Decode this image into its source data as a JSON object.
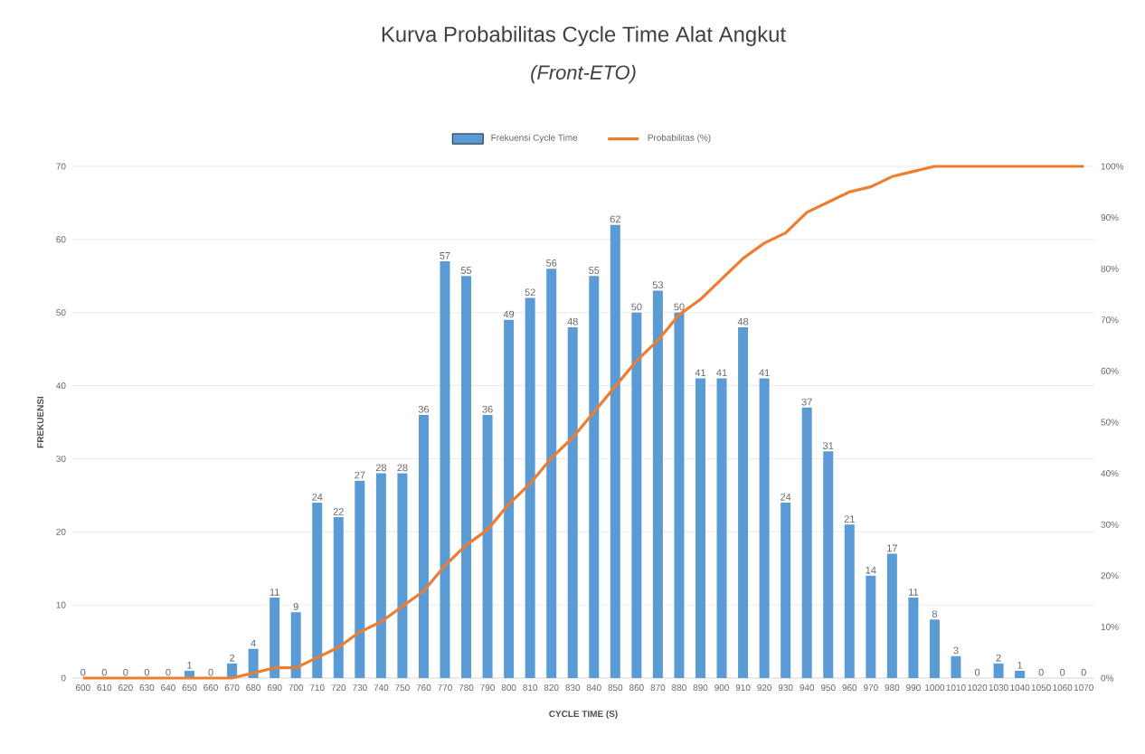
{
  "chart_data": {
    "type": "bar",
    "title": "Kurva Probabilitas Cycle Time Alat Angkut",
    "subtitle": "(Front-ETO)",
    "xlabel": "CYCLE TIME (S)",
    "ylabel": "FREKUENSI",
    "categories": [
      "600",
      "610",
      "620",
      "630",
      "640",
      "650",
      "660",
      "670",
      "680",
      "690",
      "700",
      "710",
      "720",
      "730",
      "740",
      "750",
      "760",
      "770",
      "780",
      "790",
      "800",
      "810",
      "820",
      "830",
      "840",
      "850",
      "860",
      "870",
      "880",
      "890",
      "900",
      "910",
      "920",
      "930",
      "940",
      "950",
      "960",
      "970",
      "980",
      "990",
      "1000",
      "1010",
      "1020",
      "1030",
      "1040",
      "1050",
      "1060",
      "1070"
    ],
    "series": [
      {
        "name": "Frekuensi Cycle Time",
        "color": "#5b9bd5",
        "values": [
          0,
          0,
          0,
          0,
          0,
          1,
          0,
          2,
          4,
          11,
          9,
          24,
          22,
          27,
          28,
          28,
          36,
          57,
          55,
          36,
          49,
          52,
          56,
          48,
          55,
          62,
          50,
          53,
          50,
          41,
          41,
          48,
          41,
          24,
          37,
          31,
          21,
          14,
          17,
          11,
          8,
          3,
          0,
          2,
          1,
          0,
          0,
          0
        ],
        "value_labels": [
          "0",
          "0",
          "0",
          "0",
          "0",
          "1",
          "0",
          "2",
          "4",
          "11",
          "9",
          "24",
          "22",
          "27",
          "28",
          "28",
          "36",
          "57",
          "55",
          "36",
          "49",
          "52",
          "56",
          "48",
          "55",
          "62",
          "50",
          "53",
          "50",
          "41",
          "41",
          "48",
          "41",
          "24",
          "37",
          "31",
          "21",
          "14",
          "17",
          "11",
          "8",
          "3",
          "0",
          "2",
          "1",
          "0",
          "0",
          "0"
        ]
      },
      {
        "name": "Probabilitas (%)",
        "type": "line",
        "axis": "y2",
        "color": "#ed7d31",
        "values": [
          0,
          0,
          0,
          0,
          0,
          0,
          0,
          0,
          1,
          2,
          2,
          4,
          6,
          9,
          11,
          14,
          17,
          22,
          26,
          29,
          34,
          38,
          43,
          47,
          52,
          57,
          62,
          66,
          71,
          74,
          78,
          82,
          85,
          87,
          91,
          93,
          95,
          96,
          98,
          99,
          100,
          100,
          100,
          100,
          100,
          100,
          100,
          100
        ]
      }
    ],
    "ylim": [
      0,
      70
    ],
    "yticks": [
      0,
      10,
      20,
      30,
      40,
      50,
      60,
      70
    ],
    "y2lim": [
      0,
      100
    ],
    "y2ticks": [
      {
        "value": 0,
        "label": "0%"
      },
      {
        "value": 10,
        "label": "10%"
      },
      {
        "value": 20,
        "label": "20%"
      },
      {
        "value": 30,
        "label": "30%"
      },
      {
        "value": 40,
        "label": "40%"
      },
      {
        "value": 50,
        "label": "50%"
      },
      {
        "value": 60,
        "label": "60%"
      },
      {
        "value": 70,
        "label": "70%"
      },
      {
        "value": 80,
        "label": "80%"
      },
      {
        "value": 90,
        "label": "90%"
      },
      {
        "value": 100,
        "label": "100%"
      }
    ],
    "grid": "y",
    "legend": "top"
  }
}
